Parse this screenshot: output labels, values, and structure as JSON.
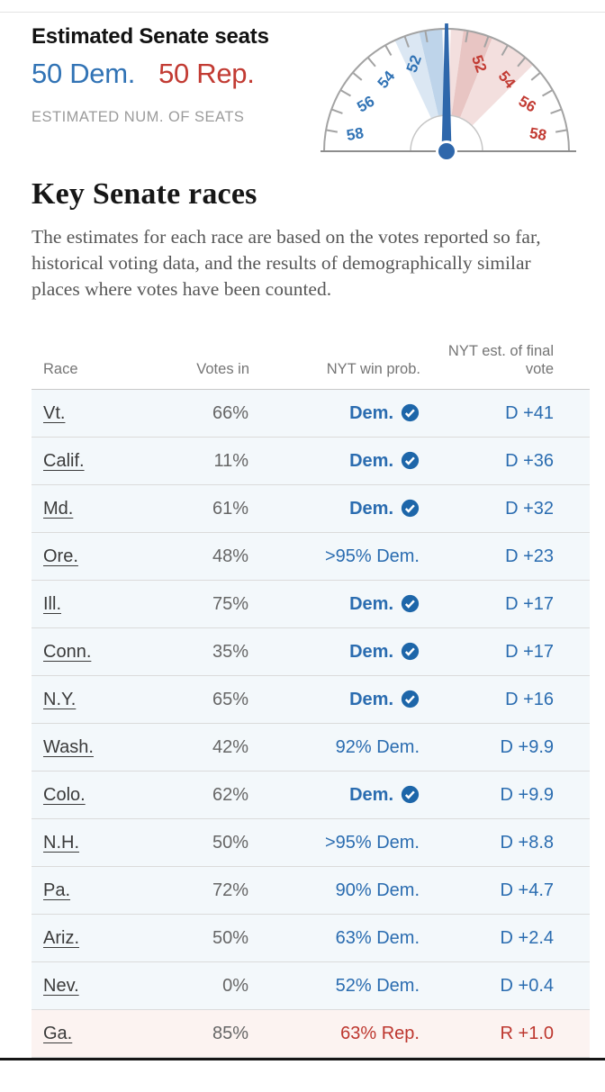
{
  "header": {
    "title": "Estimated Senate seats",
    "dem_seats_label": "50 Dem.",
    "rep_seats_label": "50 Rep.",
    "caption": "ESTIMATED NUM. OF SEATS"
  },
  "section": {
    "headline": "Key Senate races",
    "description": "The estimates for each race are based on the votes reported so far, historical voting data, and the results of demographically similar places where votes have been counted."
  },
  "colors": {
    "dem_text": "#2a6cb0",
    "rep_text": "#bd362e",
    "gauge_label_dem": "#3173b5",
    "gauge_label_rep": "#c23b33",
    "needle": "#2e67ab",
    "band_dem_medium": "#bed4ea",
    "band_dem_light": "#dbe7f3",
    "band_rep_medium": "#e8c5c3",
    "band_rep_light": "#f3dfde",
    "dem_row_bg": "#f3f8fb",
    "rep_row_bg": "#fcf3f1"
  },
  "chart_data": [
    {
      "type": "gauge",
      "title": "Estimated Senate seats",
      "dem_seats": 50,
      "rep_seats": 50,
      "needle_at": 50,
      "scale": {
        "center": 50,
        "max_offset_seats": 9,
        "degrees_per_seat": 10,
        "tick_every_seats": 1,
        "label_every_seats": 2
      },
      "tick_labels": [
        "52",
        "54",
        "56",
        "58"
      ],
      "bands": [
        {
          "party": "dem",
          "from": 50.2,
          "to": 51.3,
          "tone": "medium"
        },
        {
          "party": "dem",
          "from": 51.3,
          "to": 52.5,
          "tone": "light"
        },
        {
          "party": "rep",
          "from": 50.2,
          "to": 50.8,
          "tone": "light"
        },
        {
          "party": "rep",
          "from": 50.8,
          "to": 52.2,
          "tone": "medium"
        },
        {
          "party": "rep",
          "from": 52.2,
          "to": 54.5,
          "tone": "light"
        }
      ]
    },
    {
      "type": "table",
      "headers": [
        "Race",
        "Votes in",
        "NYT win prob.",
        "NYT est. of final vote"
      ],
      "rows": [
        {
          "race": "Vt.",
          "votes_in": "66%",
          "win_prob": "Dem.",
          "called": true,
          "est": "D +41",
          "party": "dem"
        },
        {
          "race": "Calif.",
          "votes_in": "11%",
          "win_prob": "Dem.",
          "called": true,
          "est": "D +36",
          "party": "dem"
        },
        {
          "race": "Md.",
          "votes_in": "61%",
          "win_prob": "Dem.",
          "called": true,
          "est": "D +32",
          "party": "dem"
        },
        {
          "race": "Ore.",
          "votes_in": "48%",
          "win_prob": ">95% Dem.",
          "called": false,
          "est": "D +23",
          "party": "dem"
        },
        {
          "race": "Ill.",
          "votes_in": "75%",
          "win_prob": "Dem.",
          "called": true,
          "est": "D +17",
          "party": "dem"
        },
        {
          "race": "Conn.",
          "votes_in": "35%",
          "win_prob": "Dem.",
          "called": true,
          "est": "D +17",
          "party": "dem"
        },
        {
          "race": "N.Y.",
          "votes_in": "65%",
          "win_prob": "Dem.",
          "called": true,
          "est": "D +16",
          "party": "dem"
        },
        {
          "race": "Wash.",
          "votes_in": "42%",
          "win_prob": "92% Dem.",
          "called": false,
          "est": "D +9.9",
          "party": "dem"
        },
        {
          "race": "Colo.",
          "votes_in": "62%",
          "win_prob": "Dem.",
          "called": true,
          "est": "D +9.9",
          "party": "dem"
        },
        {
          "race": "N.H.",
          "votes_in": "50%",
          "win_prob": ">95% Dem.",
          "called": false,
          "est": "D +8.8",
          "party": "dem"
        },
        {
          "race": "Pa.",
          "votes_in": "72%",
          "win_prob": "90% Dem.",
          "called": false,
          "est": "D +4.7",
          "party": "dem"
        },
        {
          "race": "Ariz.",
          "votes_in": "50%",
          "win_prob": "63% Dem.",
          "called": false,
          "est": "D +2.4",
          "party": "dem"
        },
        {
          "race": "Nev.",
          "votes_in": "0%",
          "win_prob": "52% Dem.",
          "called": false,
          "est": "D +0.4",
          "party": "dem"
        },
        {
          "race": "Ga.",
          "votes_in": "85%",
          "win_prob": "63% Rep.",
          "called": false,
          "est": "R +1.0",
          "party": "rep"
        }
      ]
    }
  ]
}
